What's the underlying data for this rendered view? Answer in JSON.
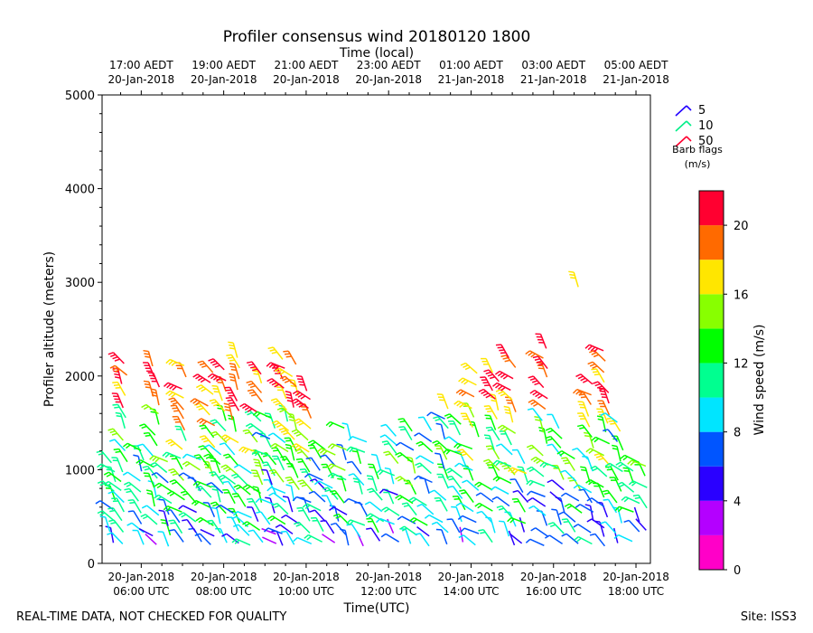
{
  "title": "Profiler consensus wind 20180120 1800",
  "footer_left": "REAL-TIME DATA, NOT CHECKED FOR QUALITY",
  "footer_right": "Site: ISS3",
  "chart_data": {
    "type": "wind_barbs",
    "xlabel": "Time(UTC)",
    "x2label": "Time (local)",
    "ylabel": "Profiler altitude (meters)",
    "xlim_hours_utc": [
      5.05,
      18.35
    ],
    "ylim": [
      0,
      5000
    ],
    "yticks": [
      0,
      1000,
      2000,
      3000,
      4000,
      5000
    ],
    "xticks": [
      {
        "hour": 6,
        "line1": "20-Jan-2018",
        "line2": "06:00 UTC"
      },
      {
        "hour": 8,
        "line1": "20-Jan-2018",
        "line2": "08:00 UTC"
      },
      {
        "hour": 10,
        "line1": "20-Jan-2018",
        "line2": "10:00 UTC"
      },
      {
        "hour": 12,
        "line1": "20-Jan-2018",
        "line2": "12:00 UTC"
      },
      {
        "hour": 14,
        "line1": "20-Jan-2018",
        "line2": "14:00 UTC"
      },
      {
        "hour": 16,
        "line1": "20-Jan-2018",
        "line2": "16:00 UTC"
      },
      {
        "hour": 18,
        "line1": "20-Jan-2018",
        "line2": "18:00 UTC"
      }
    ],
    "xticks_top": [
      {
        "hour": 6,
        "line1": "17:00 AEDT",
        "line2": "20-Jan-2018"
      },
      {
        "hour": 8,
        "line1": "19:00 AEDT",
        "line2": "20-Jan-2018"
      },
      {
        "hour": 10,
        "line1": "21:00 AEDT",
        "line2": "20-Jan-2018"
      },
      {
        "hour": 12,
        "line1": "23:00 AEDT",
        "line2": "20-Jan-2018"
      },
      {
        "hour": 14,
        "line1": "01:00 AEDT",
        "line2": "21-Jan-2018"
      },
      {
        "hour": 16,
        "line1": "03:00 AEDT",
        "line2": "21-Jan-2018"
      },
      {
        "hour": 18,
        "line1": "05:00 AEDT",
        "line2": "21-Jan-2018"
      }
    ],
    "barb_legend": {
      "title_line1": "Barb flags",
      "title_line2": "(m/s)",
      "entries": [
        {
          "label": "5",
          "color": "#2200ff"
        },
        {
          "label": "10",
          "color": "#00ee88"
        },
        {
          "label": "50",
          "color": "#ff0030"
        }
      ]
    },
    "colorbar": {
      "label": "Wind speed (m/s)",
      "range": [
        0,
        22
      ],
      "ticks": [
        "0",
        "4",
        "8",
        "12",
        "16",
        "20"
      ],
      "tick_values": [
        0,
        4,
        8,
        12,
        16,
        20
      ],
      "bands": [
        "#ff00c8",
        "#b400ff",
        "#2a00ff",
        "#0055ff",
        "#00e5ff",
        "#00ff90",
        "#00ff00",
        "#88ff00",
        "#ffe600",
        "#ff6a00",
        "#ff0030"
      ]
    },
    "profiles": [
      {
        "hour": 5.3,
        "top": 1100
      },
      {
        "hour": 5.6,
        "top": 2150
      },
      {
        "hour": 6.0,
        "top": 1250
      },
      {
        "hour": 6.35,
        "top": 2150
      },
      {
        "hour": 6.7,
        "top": 1150
      },
      {
        "hour": 7.0,
        "top": 2150
      },
      {
        "hour": 7.4,
        "top": 1200
      },
      {
        "hour": 7.7,
        "top": 2150
      },
      {
        "hour": 8.0,
        "top": 2100
      },
      {
        "hour": 8.3,
        "top": 2300
      },
      {
        "hour": 8.6,
        "top": 1050
      },
      {
        "hour": 8.9,
        "top": 2050
      },
      {
        "hour": 9.2,
        "top": 1600
      },
      {
        "hour": 9.5,
        "top": 2250
      },
      {
        "hour": 9.75,
        "top": 2150
      },
      {
        "hour": 10.1,
        "top": 1900
      },
      {
        "hour": 10.4,
        "top": 1300
      },
      {
        "hour": 10.7,
        "top": 1200
      },
      {
        "hour": 11.0,
        "top": 1500
      },
      {
        "hour": 11.4,
        "top": 1350
      },
      {
        "hour": 11.8,
        "top": 1100
      },
      {
        "hour": 12.2,
        "top": 1450
      },
      {
        "hour": 12.6,
        "top": 1500
      },
      {
        "hour": 13.0,
        "top": 1500
      },
      {
        "hour": 13.4,
        "top": 1700
      },
      {
        "hour": 13.8,
        "top": 1500
      },
      {
        "hour": 14.1,
        "top": 2050
      },
      {
        "hour": 14.6,
        "top": 2100
      },
      {
        "hour": 15.0,
        "top": 2250
      },
      {
        "hour": 15.3,
        "top": 1100
      },
      {
        "hour": 15.8,
        "top": 2400
      },
      {
        "hour": 16.2,
        "top": 1450
      },
      {
        "hour": 16.6,
        "top": 1200
      },
      {
        "hour": 16.9,
        "top": 2000
      },
      {
        "hour": 17.3,
        "top": 2350
      },
      {
        "hour": 17.6,
        "top": 1550
      },
      {
        "hour": 18.0,
        "top": 1150
      },
      {
        "hour": 18.3,
        "top": 1250
      }
    ],
    "isolated_barbs": [
      {
        "hour": 16.6,
        "alt": 2950,
        "speed": 17
      }
    ]
  }
}
